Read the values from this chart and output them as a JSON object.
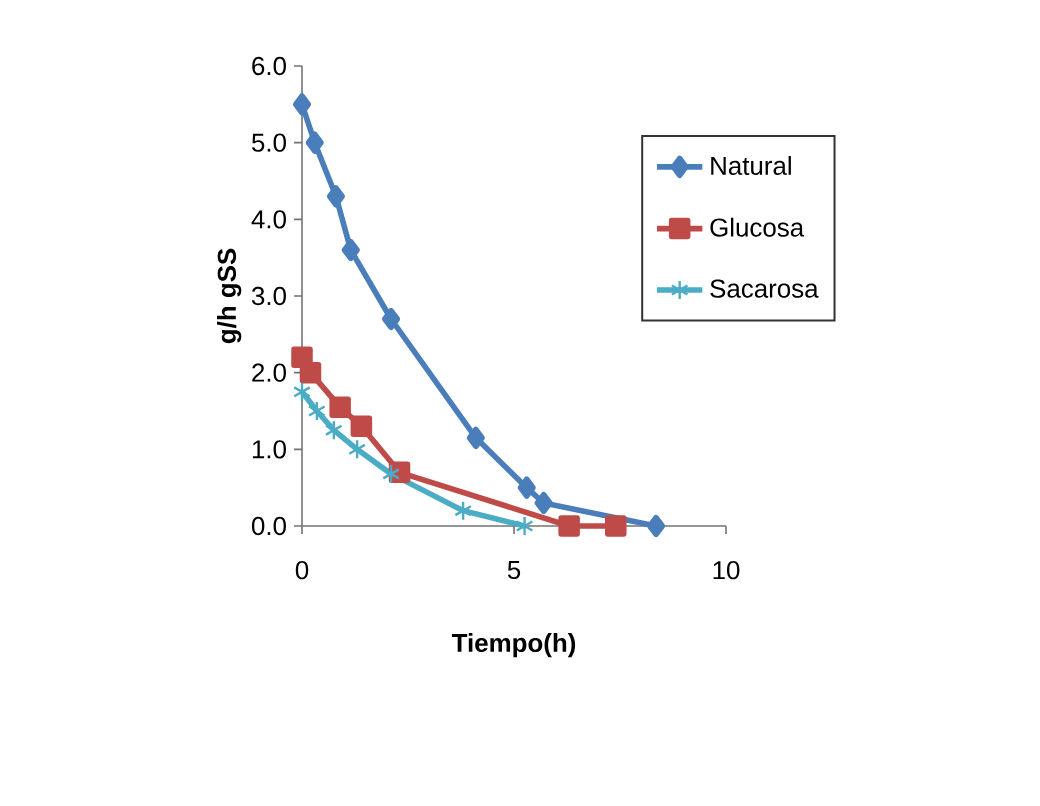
{
  "chart_data": {
    "type": "line",
    "xlabel": "Tiempo(h)",
    "ylabel": "g/h gSS",
    "xlim": [
      0,
      10
    ],
    "xticks": [
      0,
      5,
      10
    ],
    "ylim": [
      0,
      6
    ],
    "yticks": [
      {
        "value": 0,
        "label": "0.0"
      },
      {
        "value": 1,
        "label": "1.0"
      },
      {
        "value": 2,
        "label": "2.0"
      },
      {
        "value": 3,
        "label": "3.0"
      },
      {
        "value": 4,
        "label": "4.0"
      },
      {
        "value": 5,
        "label": "5.0"
      },
      {
        "value": 6,
        "label": "6.0"
      }
    ],
    "legend": "right",
    "grid": false,
    "line_style": "solid",
    "series": [
      {
        "name": "Natural",
        "color": "#4a7ebb",
        "marker": "diamond",
        "x": [
          0,
          0.3,
          0.8,
          1.15,
          2.1,
          4.1,
          5.3,
          5.7,
          8.35
        ],
        "values": [
          5.5,
          5.0,
          4.3,
          3.6,
          2.7,
          1.15,
          0.5,
          0.3,
          0
        ]
      },
      {
        "name": "Glucosa",
        "color": "#be4b48",
        "marker": "square",
        "x": [
          0,
          0.2,
          0.9,
          1.4,
          2.3,
          6.3,
          7.4
        ],
        "values": [
          2.2,
          2.0,
          1.55,
          1.3,
          0.7,
          0,
          0
        ]
      },
      {
        "name": "Sacarosa",
        "color": "#4bacc6",
        "marker": "cross",
        "x": [
          0,
          0.35,
          0.75,
          1.3,
          2.1,
          3.8,
          5.25
        ],
        "values": [
          1.75,
          1.5,
          1.25,
          1.0,
          0.68,
          0.2,
          0
        ]
      }
    ]
  }
}
